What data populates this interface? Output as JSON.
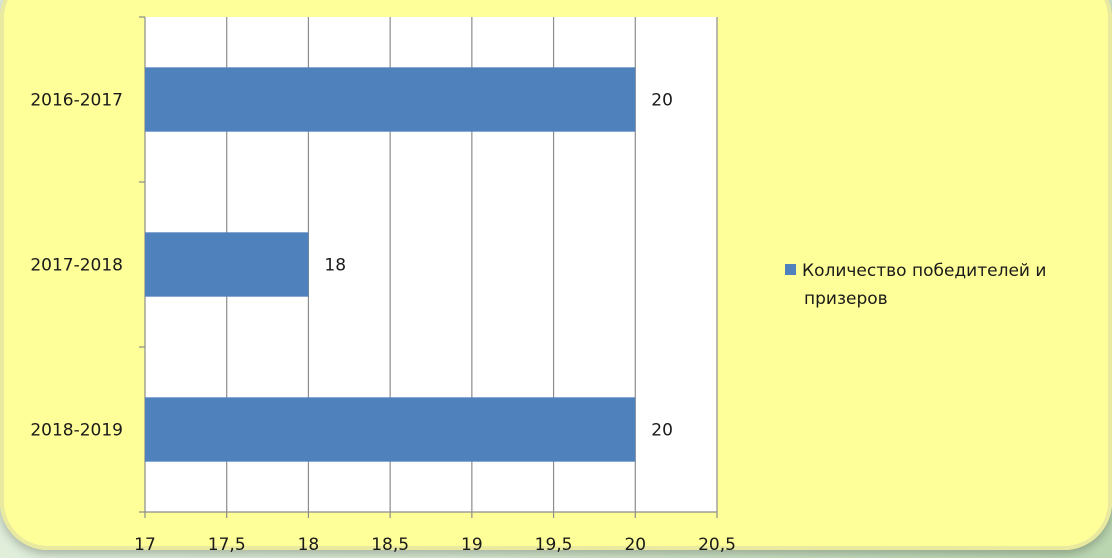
{
  "chart_data": {
    "type": "bar",
    "orientation": "horizontal",
    "categories": [
      "2016-2017",
      "2017-2018",
      "2018-2019"
    ],
    "series": [
      {
        "name": "Количество победителей  и призеров",
        "values": [
          20,
          18,
          20
        ],
        "color": "#4f81bd"
      }
    ],
    "xlim": [
      17,
      20.5
    ],
    "xticks": [
      "17",
      "17,5",
      "18",
      "18,5",
      "19",
      "19,5",
      "20",
      "20,5"
    ],
    "data_labels": [
      "20",
      "18",
      "20"
    ],
    "grid": "vertical",
    "legend_position": "right",
    "title": "",
    "xlabel": "",
    "ylabel": ""
  },
  "legend": {
    "line1": "Количество победителей  и",
    "line2": "призеров"
  }
}
